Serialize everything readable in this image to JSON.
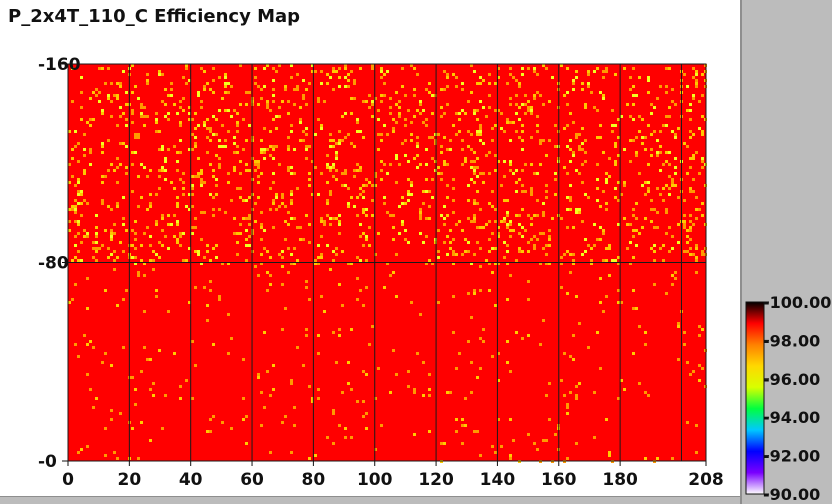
{
  "window": {
    "title": "P_2x4T_110_C Efficiency Map"
  },
  "chart_data": {
    "type": "heatmap",
    "title": "P_2x4T_110_C Efficiency Map",
    "xlabel": "",
    "ylabel": "",
    "xlim": [
      0,
      208
    ],
    "ylim": [
      0,
      160
    ],
    "x_ticks": [
      0,
      20,
      40,
      60,
      80,
      100,
      120,
      140,
      160,
      180,
      208
    ],
    "x_tick_labels": [
      "0",
      "20",
      "40",
      "60",
      "80",
      "100",
      "120",
      "140",
      "160",
      "180",
      "208"
    ],
    "y_ticks": [
      0,
      80,
      160
    ],
    "y_tick_labels": [
      "0",
      "80",
      "160"
    ],
    "x_divisions": [
      20,
      40,
      60,
      80,
      100,
      120,
      140,
      160,
      180,
      200
    ],
    "y_divisions": [
      80
    ],
    "grid": "sensor-boundary lines",
    "colorbar": {
      "min": 90.0,
      "max": 100.0,
      "ticks": [
        100,
        98,
        96,
        94,
        92,
        90
      ],
      "tick_labels": [
        "100.00",
        "98.00",
        "96.00",
        "94.00",
        "92.00",
        "90.00"
      ],
      "placement": "right",
      "colors": [
        "#ffffff",
        "#7a00ff",
        "#0000ff",
        "#00c8ff",
        "#00ff40",
        "#d8ff00",
        "#ffd800",
        "#ff8000",
        "#ff0000",
        "#000000"
      ]
    },
    "dominant_value": 100.0,
    "approximate_distribution": {
      "upper_half_y_80_160": "mostly 100% (red) with frequent scattered cells around 97-99% (orange/yellow)",
      "lower_half_y_0_80": "mostly 100% (red) with sparse scattered cells around 98-99% (orange)"
    }
  }
}
